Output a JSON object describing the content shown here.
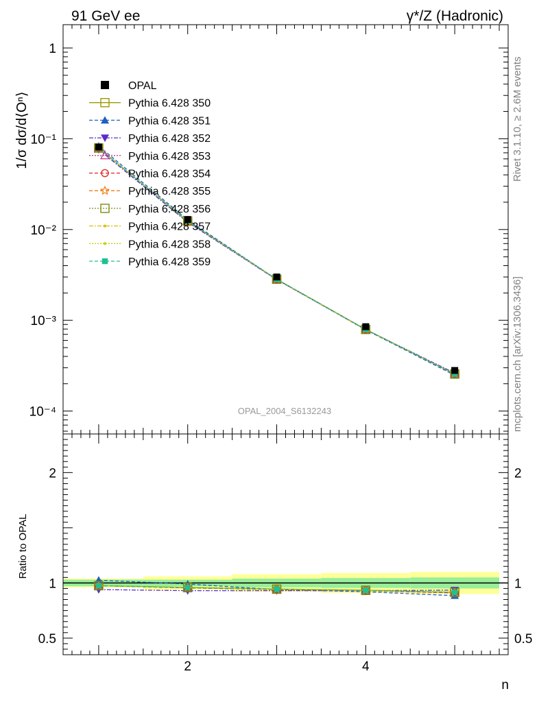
{
  "header": {
    "left": "91 GeV ee",
    "right": "γ*/Z (Hadronic)"
  },
  "side_labels": {
    "rivet": "Rivet 3.1.10, ≥ 2.6M events",
    "mcplots": "mcplots.cern.ch [arXiv:1306.3436]"
  },
  "watermark": "OPAL_2004_S6132243",
  "chart_data": [
    {
      "type": "line",
      "panel": "main",
      "title": "",
      "xlabel": "n",
      "ylabel": "1/σ dσ/d⟨Oⁿ⟩",
      "yscale": "log",
      "xlim": [
        0.6,
        5.6
      ],
      "ylim": [
        5e-05,
        2
      ],
      "x_ticks": [
        2,
        4
      ],
      "y_tick_labels": [
        "1",
        "10⁻¹",
        "10⁻²",
        "10⁻³",
        "10⁻⁴"
      ],
      "legend_position": "top-left",
      "x": [
        1,
        2,
        3,
        4,
        5
      ],
      "data": {
        "name": "OPAL",
        "values": [
          0.081,
          0.0129,
          0.003,
          0.00085,
          0.00028
        ],
        "color": "#000000"
      },
      "series": [
        {
          "name": "Pythia 6.428 350",
          "color": "#999900",
          "dash": "",
          "marker": "open-square",
          "values": [
            0.079,
            0.0124,
            0.00284,
            0.000795,
            0.000256
          ]
        },
        {
          "name": "Pythia 6.428 351",
          "color": "#1f5fbf",
          "dash": "5,3",
          "marker": "filled-triangle-up",
          "values": [
            0.083,
            0.0128,
            0.00282,
            0.000785,
            0.000248
          ]
        },
        {
          "name": "Pythia 6.428 352",
          "color": "#5a2dc8",
          "dash": "6,2,2,2",
          "marker": "filled-triangle-down",
          "values": [
            0.076,
            0.012,
            0.0028,
            0.00079,
            0.000262
          ]
        },
        {
          "name": "Pythia 6.428 353",
          "color": "#c0388c",
          "dash": "2,2",
          "marker": "open-triangle-up",
          "values": [
            0.079,
            0.0123,
            0.00282,
            0.00079,
            0.000255
          ]
        },
        {
          "name": "Pythia 6.428 354",
          "color": "#e02020",
          "dash": "5,3",
          "marker": "open-circle",
          "values": [
            0.079,
            0.0123,
            0.00282,
            0.00079,
            0.000255
          ]
        },
        {
          "name": "Pythia 6.428 355",
          "color": "#f07a10",
          "dash": "5,3",
          "marker": "open-star",
          "values": [
            0.079,
            0.01235,
            0.00283,
            0.000792,
            0.000256
          ]
        },
        {
          "name": "Pythia 6.428 356",
          "color": "#7a8c10",
          "dash": "2,2",
          "marker": "open-square",
          "values": [
            0.079,
            0.01235,
            0.00283,
            0.000792,
            0.000256
          ]
        },
        {
          "name": "Pythia 6.428 357",
          "color": "#d4c010",
          "dash": "6,2,2,2",
          "marker": "small-dot",
          "values": [
            0.079,
            0.01235,
            0.00283,
            0.000792,
            0.000256
          ]
        },
        {
          "name": "Pythia 6.428 358",
          "color": "#c4d400",
          "dash": "2,2",
          "marker": "small-dot",
          "values": [
            0.079,
            0.01235,
            0.00283,
            0.000792,
            0.000256
          ]
        },
        {
          "name": "Pythia 6.428 359",
          "color": "#20c090",
          "dash": "5,3",
          "marker": "filled-square",
          "values": [
            0.079,
            0.01235,
            0.00283,
            0.000792,
            0.000256
          ]
        }
      ]
    },
    {
      "type": "line",
      "panel": "ratio",
      "title": "",
      "xlabel": "n",
      "ylabel": "Ratio to OPAL",
      "xlim": [
        0.6,
        5.6
      ],
      "ylim": [
        0.35,
        2.35
      ],
      "x_ticks": [
        2,
        4
      ],
      "y_tick_labels": [
        "0.5",
        "1",
        "2"
      ],
      "y_tick_values": [
        0.5,
        1,
        2
      ],
      "x": [
        1,
        2,
        3,
        4,
        5
      ],
      "band_edges": [
        0.6,
        1.5,
        2.5,
        3.5,
        4.5,
        5.5
      ],
      "band_inner": [
        0.03,
        0.03,
        0.04,
        0.045,
        0.05
      ],
      "band_outer": [
        0.04,
        0.06,
        0.08,
        0.09,
        0.1
      ],
      "series": [
        {
          "name": "Pythia 6.428 350",
          "values": [
            0.975,
            0.96,
            0.945,
            0.935,
            0.915
          ]
        },
        {
          "name": "Pythia 6.428 351",
          "values": [
            1.025,
            0.99,
            0.94,
            0.92,
            0.885
          ]
        },
        {
          "name": "Pythia 6.428 352",
          "values": [
            0.94,
            0.93,
            0.93,
            0.93,
            0.935
          ]
        },
        {
          "name": "Pythia 6.428 353",
          "values": [
            0.975,
            0.955,
            0.94,
            0.93,
            0.91
          ]
        },
        {
          "name": "Pythia 6.428 354",
          "values": [
            0.975,
            0.955,
            0.94,
            0.93,
            0.91
          ]
        },
        {
          "name": "Pythia 6.428 355",
          "values": [
            0.975,
            0.957,
            0.943,
            0.932,
            0.915
          ]
        },
        {
          "name": "Pythia 6.428 356",
          "values": [
            0.975,
            0.957,
            0.943,
            0.932,
            0.915
          ]
        },
        {
          "name": "Pythia 6.428 357",
          "values": [
            0.975,
            0.957,
            0.943,
            0.932,
            0.915
          ]
        },
        {
          "name": "Pythia 6.428 358",
          "values": [
            0.975,
            0.957,
            0.943,
            0.932,
            0.915
          ]
        },
        {
          "name": "Pythia 6.428 359",
          "values": [
            0.975,
            0.957,
            0.943,
            0.932,
            0.915
          ]
        }
      ]
    }
  ]
}
